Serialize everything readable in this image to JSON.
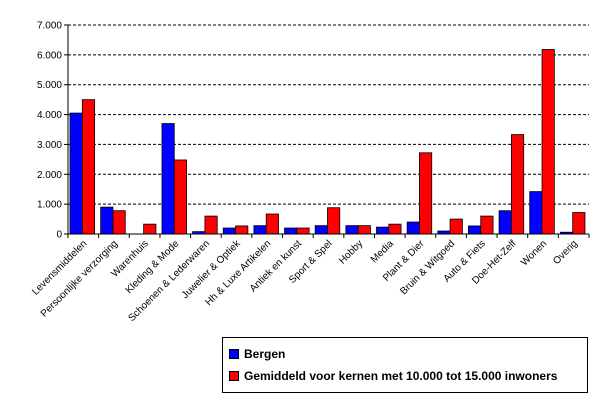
{
  "chart_data": {
    "type": "bar",
    "title": "",
    "xlabel": "",
    "ylabel": "",
    "ylim": [
      0,
      7000
    ],
    "yticks": [
      "0",
      "1.000",
      "2.000",
      "3.000",
      "4.000",
      "5.000",
      "6.000",
      "7.000"
    ],
    "grid": true,
    "legend_position": "bottom-right",
    "categories": [
      "Levensmiddelen",
      "Persoonlijke verzorging",
      "Warenhuis",
      "Kleding & Mode",
      "Schoenen & Lederwaren",
      "Juwelier & Optiek",
      "Hh & Luxe Artikelen",
      "Antiek en kunst",
      "Sport & Spel",
      "Hobby",
      "Media",
      "Plant & Dier",
      "Bruin & Witgoed",
      "Auto & Fiets",
      "Doe-Het-Zelf",
      "Wonen",
      "Overig"
    ],
    "series": [
      {
        "name": "Bergen",
        "color": "#0000ff",
        "values": [
          4050,
          900,
          0,
          3700,
          80,
          200,
          280,
          200,
          280,
          280,
          230,
          400,
          100,
          270,
          780,
          1420,
          60
        ]
      },
      {
        "name": "Gemiddeld voor kernen met 10.000 tot 15.000 inwoners",
        "color": "#ff0000",
        "values": [
          4500,
          780,
          330,
          2480,
          600,
          270,
          670,
          200,
          880,
          280,
          330,
          2720,
          500,
          600,
          3330,
          6180,
          720
        ]
      }
    ]
  }
}
